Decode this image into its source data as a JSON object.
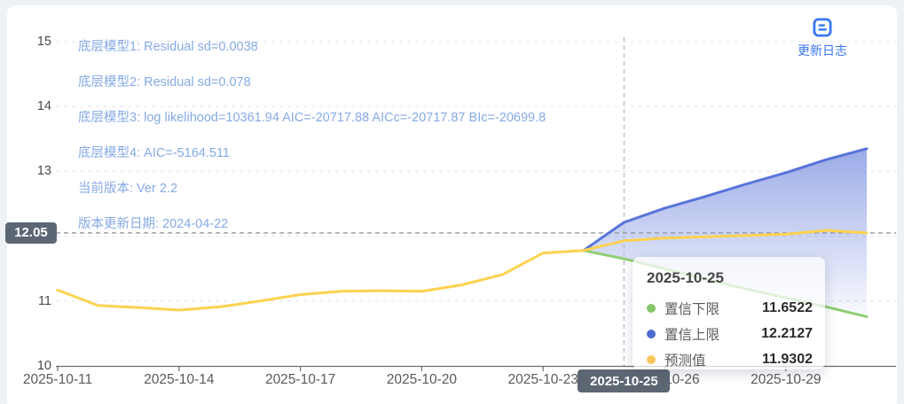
{
  "page": {
    "background_color": "#eef1f6",
    "card_color": "#ffffff"
  },
  "update_log": {
    "label": "更新日志",
    "color": "#3a77f0"
  },
  "model_info": {
    "color": "#85aae6",
    "items": [
      "底层模型1: Residual sd=0.0038",
      "底层模型2: Residual sd=0.078",
      "底层模型3: log likelihood=10361.94 AIC=-20717.88 AICc=-20717.87 BIc=-20699.8",
      "底层模型4: AIC=-5164.511",
      "当前版本: Ver 2.2",
      "版本更新日期: 2024-04-22"
    ]
  },
  "axes": {
    "y_labels": [
      "15",
      "14",
      "13",
      "12",
      "11",
      "10"
    ],
    "x_labels": [
      "2025-10-11",
      "2025-10-14",
      "2025-10-17",
      "2025-10-20",
      "2025-10-23",
      "2025-10-26",
      "2025-10-29"
    ]
  },
  "crosshair": {
    "x_label": "2025-10-25",
    "y_label": "12.05",
    "x_index": 14,
    "y_value": 12.05,
    "badge_color": "#5d6773"
  },
  "tooltip": {
    "title": "2025-10-25",
    "rows": [
      {
        "label": "置信下限",
        "value": "11.6522",
        "color": "#85c568"
      },
      {
        "label": "置信上限",
        "value": "12.2127",
        "color": "#4e6bd2"
      },
      {
        "label": "预测值",
        "value": "11.9302",
        "color": "#fbc75b"
      }
    ]
  },
  "chart_data": {
    "type": "line",
    "title": "",
    "xlabel": "",
    "ylabel": "",
    "ylim": [
      10,
      15
    ],
    "y_ticks": [
      10,
      11,
      12,
      13,
      14,
      15
    ],
    "x": [
      "2025-10-11",
      "2025-10-12",
      "2025-10-13",
      "2025-10-14",
      "2025-10-15",
      "2025-10-16",
      "2025-10-17",
      "2025-10-18",
      "2025-10-19",
      "2025-10-20",
      "2025-10-21",
      "2025-10-22",
      "2025-10-23",
      "2025-10-24",
      "2025-10-25",
      "2025-10-26",
      "2025-10-27",
      "2025-10-28",
      "2025-10-29",
      "2025-10-30",
      "2025-10-31"
    ],
    "x_tick_indices": [
      0,
      3,
      6,
      9,
      12,
      15,
      18
    ],
    "forecast_start_index": 13,
    "grid": "horizontal-dashed",
    "legend_position": "none",
    "series": [
      {
        "name": "预测值",
        "color": "#fdd24f",
        "values": [
          11.17,
          10.93,
          10.9,
          10.86,
          10.91,
          11.0,
          11.1,
          11.15,
          11.16,
          11.15,
          11.25,
          11.41,
          11.74,
          11.78,
          11.9302,
          11.97,
          11.99,
          12.01,
          12.03,
          12.09,
          12.05
        ]
      },
      {
        "name": "置信上限",
        "color": "#5874da",
        "values": [
          null,
          null,
          null,
          null,
          null,
          null,
          null,
          null,
          null,
          null,
          null,
          null,
          null,
          11.78,
          12.2127,
          12.43,
          12.61,
          12.8,
          12.98,
          13.18,
          13.35
        ]
      },
      {
        "name": "置信下限",
        "color": "#8fce73",
        "values": [
          null,
          null,
          null,
          null,
          null,
          null,
          null,
          null,
          null,
          null,
          null,
          null,
          null,
          11.78,
          11.6522,
          11.5,
          11.34,
          11.19,
          11.05,
          10.91,
          10.76
        ]
      }
    ],
    "band": {
      "between": [
        "置信上限",
        "置信下限"
      ],
      "fill_top": "rgba(88,115,216,0.60)",
      "fill_bottom": "rgba(88,115,216,0.03)"
    }
  }
}
